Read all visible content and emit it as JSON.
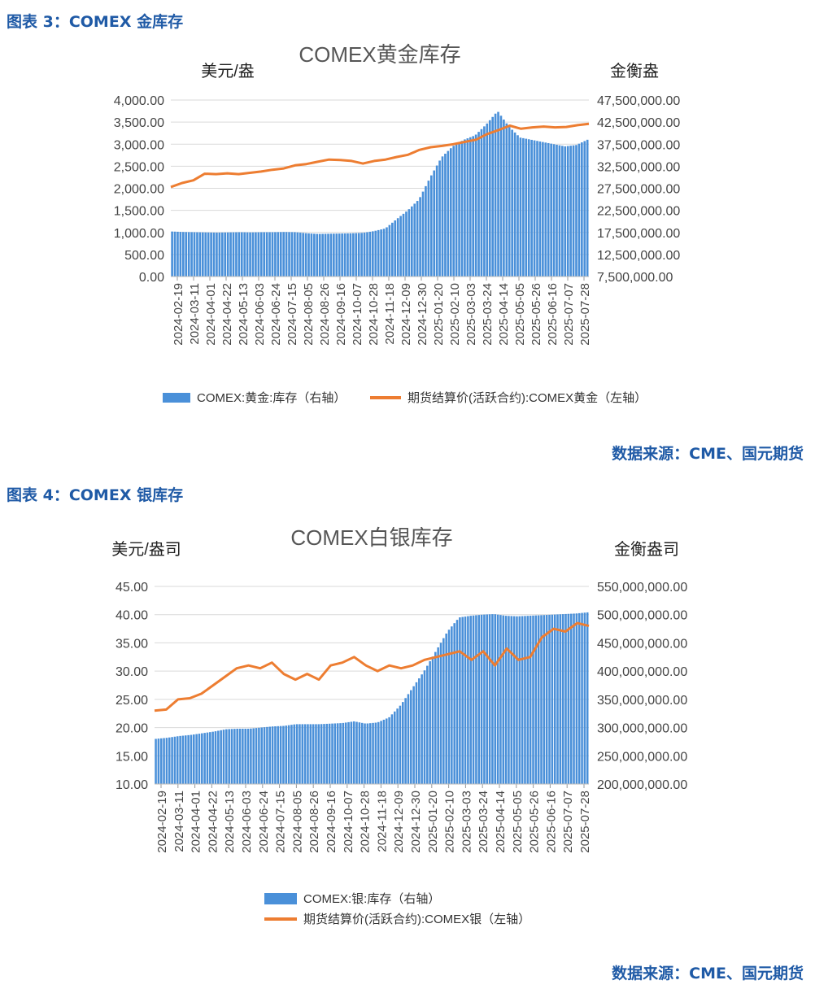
{
  "charts": [
    {
      "figure_label": "图表 3：COMEX 金库存",
      "source": "数据来源：CME、国元期货",
      "chart_data": {
        "type": "bar",
        "title": "COMEX黄金库存",
        "y_left_label": "美元/盎",
        "y_right_label": "金衡盎",
        "y_left_ticks": [
          "0.00",
          "500.00",
          "1,000.00",
          "1,500.00",
          "2,000.00",
          "2,500.00",
          "3,000.00",
          "3,500.00",
          "4,000.00"
        ],
        "y_right_ticks": [
          "7,500,000.00",
          "12,500,000.00",
          "17,500,000.00",
          "22,500,000.00",
          "27,500,000.00",
          "32,500,000.00",
          "37,500,000.00",
          "42,500,000.00",
          "47,500,000.00"
        ],
        "y_left_range": [
          0,
          4000
        ],
        "y_right_range": [
          7500000,
          47500000
        ],
        "x_ticks": [
          "2024-02-19",
          "2024-03-11",
          "2024-04-01",
          "2024-04-22",
          "2024-05-13",
          "2024-06-03",
          "2024-06-24",
          "2024-07-15",
          "2024-08-05",
          "2024-08-26",
          "2024-09-16",
          "2024-10-07",
          "2024-10-28",
          "2024-11-18",
          "2024-12-09",
          "2024-12-30",
          "2025-01-20",
          "2025-02-10",
          "2025-03-03",
          "2025-03-24",
          "2025-04-14",
          "2025-05-05",
          "2025-05-26",
          "2025-06-16",
          "2025-07-07",
          "2025-07-28"
        ],
        "series": [
          {
            "name": "COMEX:黄金:库存（右轴）",
            "type": "bar",
            "axis": "right",
            "color": "#4a90d9",
            "values": [
              17700000,
              17600000,
              17550000,
              17500000,
              17450000,
              17500000,
              17550000,
              17500000,
              17550000,
              17550000,
              17600000,
              17550000,
              17300000,
              17150000,
              17200000,
              17250000,
              17300000,
              17400000,
              17800000,
              18400000,
              20500000,
              22500000,
              25000000,
              30000000,
              34500000,
              37000000,
              38500000,
              39500000,
              42000000,
              45000000,
              41500000,
              39000000,
              38500000,
              38000000,
              37500000,
              37000000,
              37300000,
              38500000
            ]
          },
          {
            "name": "期货结算价(活跃合约):COMEX黄金（左轴）",
            "type": "line",
            "axis": "left",
            "color": "#ed7d31",
            "values": [
              2030,
              2120,
              2180,
              2330,
              2320,
              2340,
              2320,
              2350,
              2380,
              2420,
              2450,
              2520,
              2550,
              2600,
              2650,
              2640,
              2620,
              2560,
              2620,
              2650,
              2710,
              2760,
              2870,
              2930,
              2960,
              3000,
              3050,
              3100,
              3230,
              3320,
              3420,
              3350,
              3380,
              3400,
              3380,
              3390,
              3430,
              3460
            ]
          }
        ]
      }
    },
    {
      "figure_label": "图表 4：COMEX 银库存",
      "source": "数据来源：CME、国元期货",
      "chart_data": {
        "type": "bar",
        "title": "COMEX白银库存",
        "y_left_label": "美元/盎司",
        "y_right_label": "金衡盎司",
        "y_left_ticks": [
          "10.00",
          "15.00",
          "20.00",
          "25.00",
          "30.00",
          "35.00",
          "40.00",
          "45.00"
        ],
        "y_right_ticks": [
          "200,000,000.00",
          "250,000,000.00",
          "300,000,000.00",
          "350,000,000.00",
          "400,000,000.00",
          "450,000,000.00",
          "500,000,000.00",
          "550,000,000.00"
        ],
        "y_left_range": [
          10,
          45
        ],
        "y_right_range": [
          200000000,
          550000000
        ],
        "x_ticks": [
          "2024-02-19",
          "2024-03-11",
          "2024-04-01",
          "2024-04-22",
          "2024-05-13",
          "2024-06-03",
          "2024-06-24",
          "2024-07-15",
          "2024-08-05",
          "2024-08-26",
          "2024-09-16",
          "2024-10-07",
          "2024-10-28",
          "2024-11-18",
          "2024-12-09",
          "2024-12-30",
          "2025-01-20",
          "2025-02-10",
          "2025-03-03",
          "2025-03-24",
          "2025-04-14",
          "2025-05-05",
          "2025-05-26",
          "2025-06-16",
          "2025-07-07",
          "2025-07-28"
        ],
        "series": [
          {
            "name": "COMEX:银:库存（右轴）",
            "type": "bar",
            "axis": "right",
            "color": "#4a90d9",
            "values": [
              280000000,
              282000000,
              285000000,
              287000000,
              290000000,
              293000000,
              297000000,
              298000000,
              298000000,
              300000000,
              302000000,
              303000000,
              306000000,
              306000000,
              306000000,
              307000000,
              308000000,
              311000000,
              307000000,
              309000000,
              318000000,
              340000000,
              370000000,
              400000000,
              435000000,
              470000000,
              495000000,
              498000000,
              500000000,
              501000000,
              498000000,
              497000000,
              498000000,
              499000000,
              500000000,
              501000000,
              502000000,
              504000000
            ]
          },
          {
            "name": "期货结算价(活跃合约):COMEX银（左轴）",
            "type": "line",
            "axis": "left",
            "color": "#ed7d31",
            "values": [
              23.0,
              23.2,
              25.0,
              25.2,
              26.0,
              27.5,
              29.0,
              30.5,
              31.0,
              30.5,
              31.5,
              29.5,
              28.5,
              29.5,
              28.5,
              31.0,
              31.5,
              32.5,
              31.0,
              30.0,
              31.0,
              30.5,
              31.0,
              32.0,
              32.5,
              33.0,
              33.5,
              32.0,
              33.5,
              31.0,
              34.0,
              32.0,
              32.5,
              36.0,
              37.5,
              37.0,
              38.5,
              38.0
            ]
          }
        ]
      }
    }
  ]
}
